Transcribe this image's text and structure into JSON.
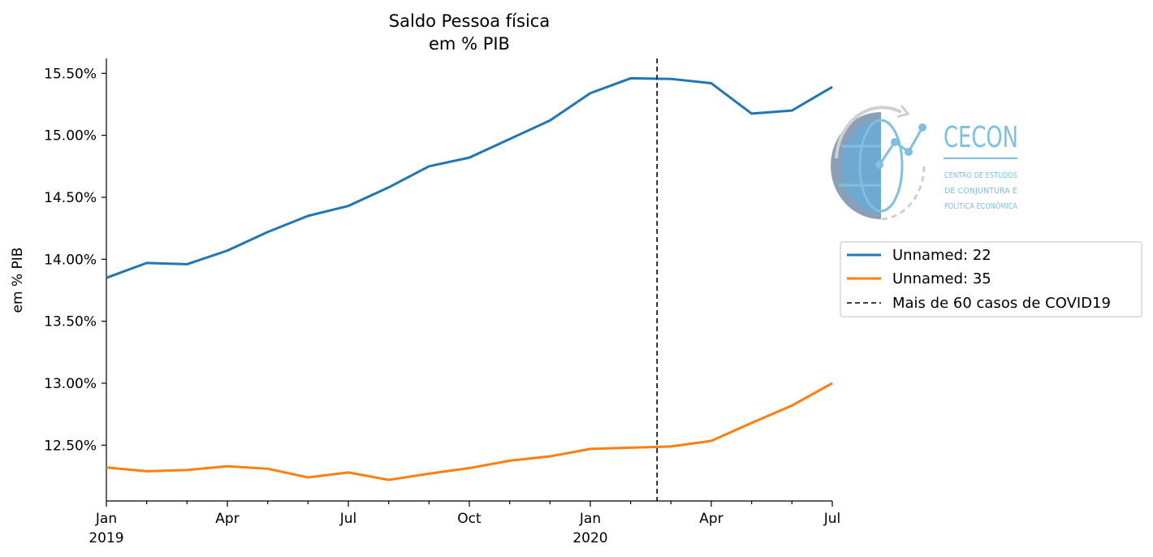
{
  "chart_data": {
    "type": "line",
    "title_line1": "Saldo Pessoa física",
    "title_line2": "em % PIB",
    "ylabel": "em % PIB",
    "xlabel": "",
    "x": [
      "2019-01",
      "2019-02",
      "2019-03",
      "2019-04",
      "2019-05",
      "2019-06",
      "2019-07",
      "2019-08",
      "2019-09",
      "2019-10",
      "2019-11",
      "2019-12",
      "2020-01",
      "2020-02",
      "2020-03",
      "2020-04",
      "2020-05",
      "2020-06",
      "2020-07"
    ],
    "xlim": [
      "2019-01",
      "2020-07"
    ],
    "ylim": [
      12.05,
      15.62
    ],
    "yticks": [
      12.5,
      13.0,
      13.5,
      14.0,
      14.5,
      15.0,
      15.5
    ],
    "ytick_labels": [
      "12.50%",
      "13.00%",
      "13.50%",
      "14.00%",
      "14.50%",
      "15.00%",
      "15.50%"
    ],
    "xticks_major": [
      {
        "x": "2019-01",
        "label": "Jan",
        "sub": "2019"
      },
      {
        "x": "2019-04",
        "label": "Apr",
        "sub": ""
      },
      {
        "x": "2019-07",
        "label": "Jul",
        "sub": ""
      },
      {
        "x": "2019-10",
        "label": "Oct",
        "sub": ""
      },
      {
        "x": "2020-01",
        "label": "Jan",
        "sub": "2020"
      },
      {
        "x": "2020-04",
        "label": "Apr",
        "sub": ""
      },
      {
        "x": "2020-07",
        "label": "Jul",
        "sub": ""
      }
    ],
    "series": [
      {
        "name": "Unnamed: 22",
        "color": "#1f77b4",
        "values": [
          13.85,
          13.97,
          13.96,
          14.07,
          14.22,
          14.35,
          14.43,
          14.58,
          14.75,
          14.82,
          14.97,
          15.12,
          15.34,
          15.46,
          15.455,
          15.42,
          15.175,
          15.2,
          15.39
        ]
      },
      {
        "name": "Unnamed: 35",
        "color": "#ff7f0e",
        "values": [
          12.32,
          12.29,
          12.3,
          12.33,
          12.31,
          12.24,
          12.28,
          12.22,
          12.27,
          12.315,
          12.375,
          12.41,
          12.47,
          12.48,
          12.49,
          12.535,
          12.68,
          12.82,
          13.0
        ]
      }
    ],
    "vline": {
      "x": "2020-02-20",
      "label": "Mais de 60 casos de COVID19",
      "color": "#000000",
      "style": "dashed"
    },
    "legend_position": "right",
    "grid": false
  },
  "logo": {
    "name": "CECON",
    "line1": "CENTRO DE ESTUDOS",
    "line2": "DE CONJUNTURA E",
    "line3": "POLÍTICA ECONÔMICA",
    "color": "#7fbfe0"
  }
}
